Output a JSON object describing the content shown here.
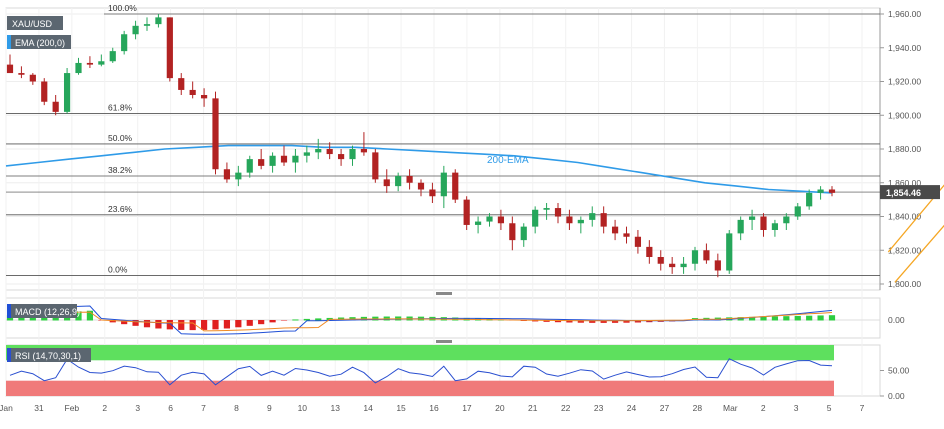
{
  "chart_data": {
    "type": "candlestick",
    "instrument": "XAU/USD",
    "indicator_labels": {
      "ema": "EMA (200,0)",
      "ema_annotation": "200-EMA",
      "macd": "MACD (12,26,9)",
      "rsi": "RSI (14,70,30,1)"
    },
    "current_price_label": "1,854.46",
    "current_price": 1854.46,
    "price_axis": {
      "min": 1800,
      "max": 1960,
      "ticks": [
        {
          "v": 1960,
          "label": "1,960.00"
        },
        {
          "v": 1940,
          "label": "1,940.00"
        },
        {
          "v": 1920,
          "label": "1,920.00"
        },
        {
          "v": 1900,
          "label": "1,900.00"
        },
        {
          "v": 1880,
          "label": "1,880.00"
        },
        {
          "v": 1860,
          "label": "1,860.00"
        },
        {
          "v": 1840,
          "label": "1,840.00"
        },
        {
          "v": 1820,
          "label": "1,820.00"
        },
        {
          "v": 1800,
          "label": "1,800.00"
        }
      ]
    },
    "fibonacci_levels": [
      {
        "label": "100.0%",
        "price": 1960
      },
      {
        "label": "61.8%",
        "price": 1901
      },
      {
        "label": "50.0%",
        "price": 1883
      },
      {
        "label": "38.2%",
        "price": 1864
      },
      {
        "label": "23.6%",
        "price": 1841
      },
      {
        "label": "0.0%",
        "price": 1805
      }
    ],
    "macd_axis": {
      "ticks": [
        {
          "v": 0,
          "label": "0.00"
        }
      ]
    },
    "rsi_axis": {
      "min": 0,
      "max": 100,
      "ticks": [
        {
          "v": 50,
          "label": "50.00"
        },
        {
          "v": 0,
          "label": "0.00"
        }
      ],
      "overbought": 70,
      "oversold": 30
    },
    "x_labels": [
      "Jan",
      "31",
      "Feb",
      "2",
      "3",
      "6",
      "7",
      "8",
      "9",
      "10",
      "13",
      "14",
      "15",
      "16",
      "17",
      "20",
      "21",
      "22",
      "23",
      "24",
      "27",
      "28",
      "Mar",
      "2",
      "3",
      "5",
      "7"
    ],
    "ema_series": [
      1870,
      1872,
      1874,
      1876,
      1878,
      1880,
      1881,
      1882,
      1882,
      1882,
      1881,
      1881,
      1880,
      1879,
      1878,
      1877,
      1876,
      1874,
      1872,
      1869,
      1866,
      1863,
      1860,
      1858,
      1856,
      1855,
      1854
    ],
    "channel": {
      "upper": [
        [
          26.8,
          1819
        ],
        [
          29.5,
          1882
        ]
      ],
      "lower": [
        [
          27.0,
          1801
        ],
        [
          29.8,
          1864
        ]
      ]
    },
    "candles": [
      [
        1930,
        1936,
        1926,
        1925
      ],
      [
        1925,
        1929,
        1922,
        1924
      ],
      [
        1924,
        1925,
        1918,
        1920
      ],
      [
        1920,
        1922,
        1906,
        1908
      ],
      [
        1908,
        1912,
        1900,
        1902
      ],
      [
        1902,
        1928,
        1901,
        1925
      ],
      [
        1925,
        1934,
        1924,
        1931
      ],
      [
        1931,
        1935,
        1928,
        1930
      ],
      [
        1930,
        1936,
        1929,
        1932
      ],
      [
        1932,
        1940,
        1931,
        1938
      ],
      [
        1938,
        1950,
        1936,
        1948
      ],
      [
        1948,
        1956,
        1945,
        1953
      ],
      [
        1953,
        1958,
        1950,
        1954
      ],
      [
        1954,
        1960,
        1952,
        1958
      ],
      [
        1958,
        1958,
        1920,
        1922
      ],
      [
        1922,
        1925,
        1912,
        1915
      ],
      [
        1915,
        1920,
        1910,
        1912
      ],
      [
        1912,
        1916,
        1905,
        1910
      ],
      [
        1910,
        1914,
        1865,
        1868
      ],
      [
        1868,
        1872,
        1860,
        1862
      ],
      [
        1862,
        1870,
        1858,
        1866
      ],
      [
        1866,
        1876,
        1863,
        1874
      ],
      [
        1874,
        1880,
        1868,
        1870
      ],
      [
        1870,
        1878,
        1866,
        1876
      ],
      [
        1876,
        1882,
        1870,
        1872
      ],
      [
        1872,
        1880,
        1866,
        1876
      ],
      [
        1876,
        1882,
        1872,
        1878
      ],
      [
        1878,
        1886,
        1874,
        1880
      ],
      [
        1880,
        1884,
        1874,
        1877
      ],
      [
        1877,
        1880,
        1870,
        1874
      ],
      [
        1874,
        1882,
        1870,
        1880
      ],
      [
        1880,
        1890,
        1876,
        1878
      ],
      [
        1878,
        1880,
        1860,
        1862
      ],
      [
        1862,
        1868,
        1854,
        1858
      ],
      [
        1858,
        1866,
        1855,
        1864
      ],
      [
        1864,
        1868,
        1856,
        1860
      ],
      [
        1860,
        1862,
        1852,
        1856
      ],
      [
        1856,
        1860,
        1848,
        1852
      ],
      [
        1852,
        1870,
        1845,
        1866
      ],
      [
        1866,
        1868,
        1848,
        1850
      ],
      [
        1850,
        1852,
        1832,
        1835
      ],
      [
        1835,
        1840,
        1830,
        1837
      ],
      [
        1837,
        1842,
        1834,
        1840
      ],
      [
        1840,
        1844,
        1832,
        1836
      ],
      [
        1836,
        1840,
        1820,
        1826
      ],
      [
        1826,
        1836,
        1822,
        1834
      ],
      [
        1834,
        1846,
        1830,
        1844
      ],
      [
        1844,
        1848,
        1838,
        1845
      ],
      [
        1845,
        1848,
        1836,
        1840
      ],
      [
        1840,
        1844,
        1832,
        1836
      ],
      [
        1836,
        1840,
        1830,
        1838
      ],
      [
        1838,
        1846,
        1834,
        1842
      ],
      [
        1842,
        1846,
        1830,
        1834
      ],
      [
        1834,
        1838,
        1826,
        1830
      ],
      [
        1830,
        1834,
        1824,
        1828
      ],
      [
        1828,
        1832,
        1818,
        1822
      ],
      [
        1822,
        1826,
        1812,
        1816
      ],
      [
        1816,
        1820,
        1808,
        1812
      ],
      [
        1812,
        1816,
        1806,
        1810
      ],
      [
        1810,
        1816,
        1806,
        1812
      ],
      [
        1812,
        1822,
        1808,
        1820
      ],
      [
        1820,
        1824,
        1812,
        1814
      ],
      [
        1814,
        1818,
        1804,
        1808
      ],
      [
        1808,
        1832,
        1806,
        1830
      ],
      [
        1830,
        1840,
        1826,
        1838
      ],
      [
        1838,
        1844,
        1832,
        1840
      ],
      [
        1840,
        1842,
        1828,
        1832
      ],
      [
        1832,
        1838,
        1828,
        1836
      ],
      [
        1836,
        1842,
        1832,
        1840
      ],
      [
        1840,
        1848,
        1838,
        1846
      ],
      [
        1846,
        1856,
        1844,
        1854
      ],
      [
        1854,
        1858,
        1850,
        1856
      ],
      [
        1856,
        1858,
        1852,
        1854
      ]
    ]
  }
}
